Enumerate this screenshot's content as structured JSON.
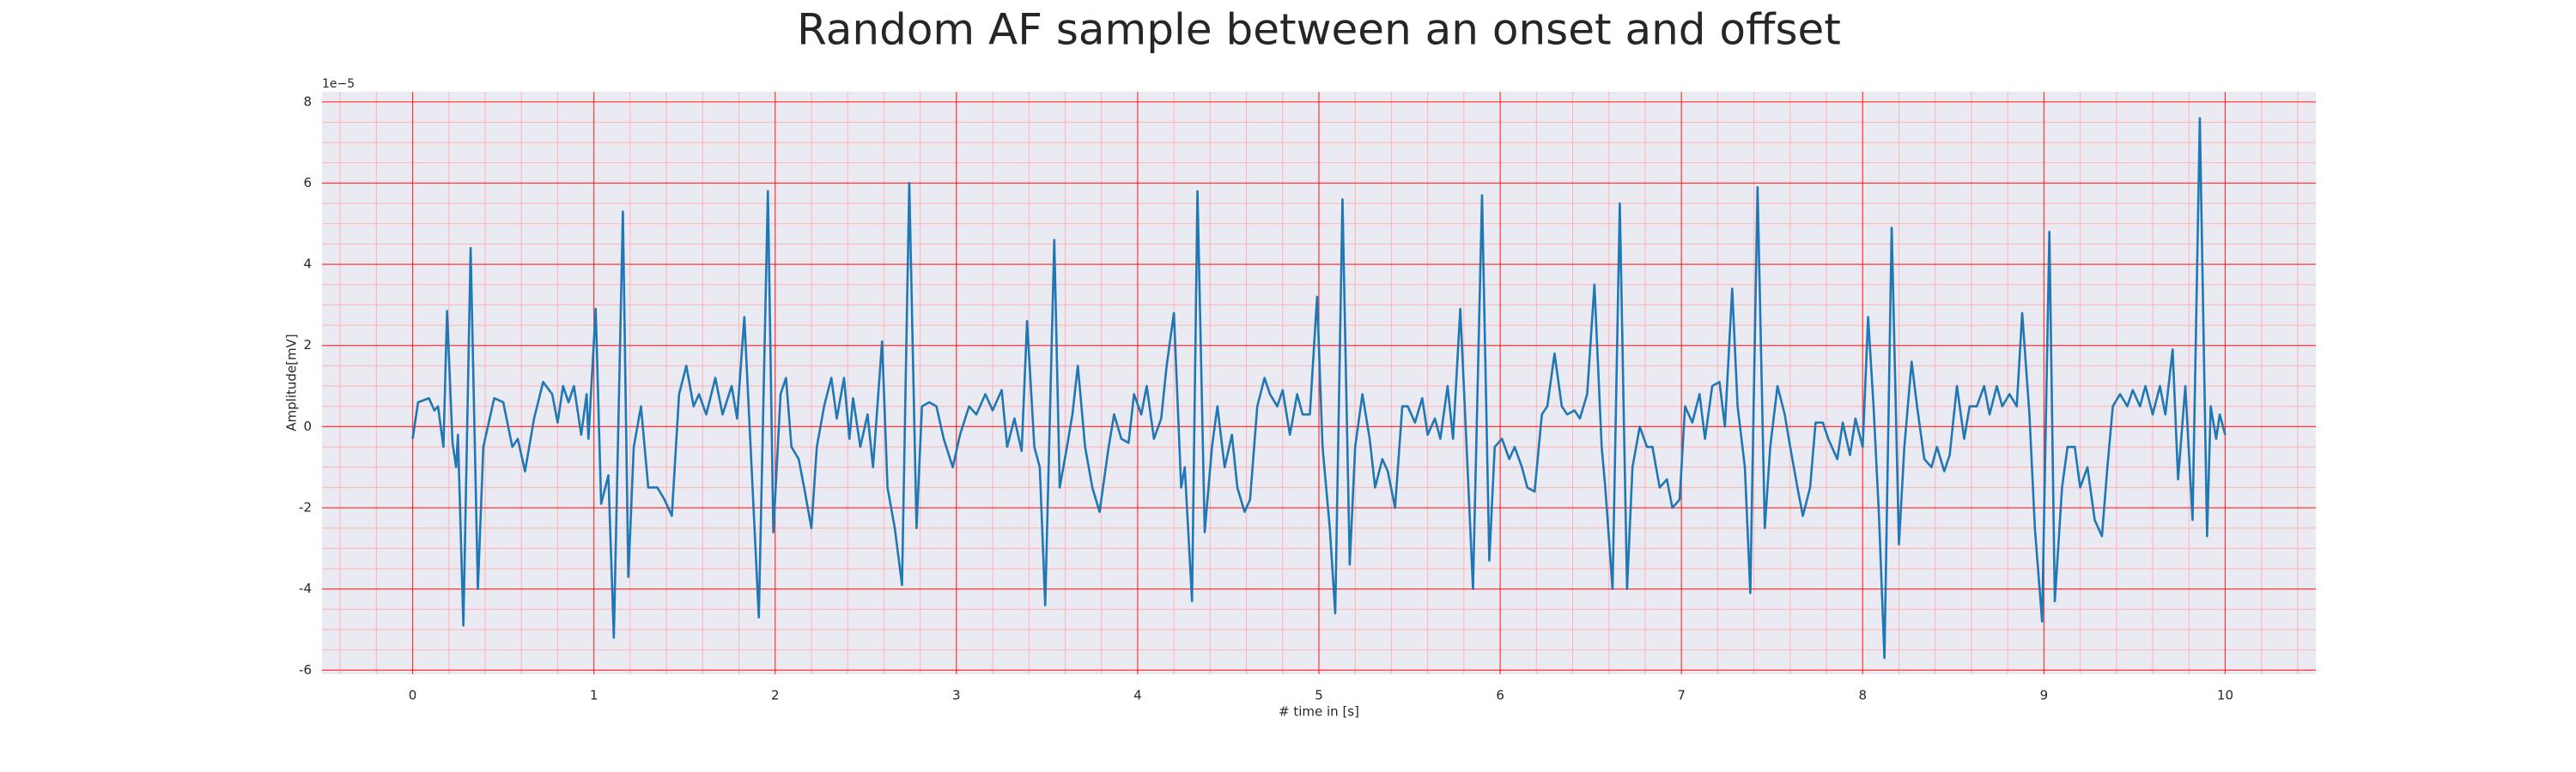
{
  "chart_data": {
    "type": "line",
    "title": "Random AF sample between an onset and offset",
    "xlabel": "# time in [s]",
    "ylabel": "Amplitude[mV]",
    "y_offset_label": "1e−5",
    "color": "#1f77b4",
    "grid": true,
    "grid_color": "#ff0000",
    "minor_grid_color": "#ffb3b3",
    "minor_xstep": 0.2,
    "minor_ystep": 0.5,
    "xlim": [
      -0.5,
      10.5
    ],
    "ylim": [
      -6.1,
      8.25
    ],
    "xticks": [
      0,
      1,
      2,
      3,
      4,
      5,
      6,
      7,
      8,
      9,
      10
    ],
    "yticks": [
      -6,
      -4,
      -2,
      0,
      2,
      4,
      6,
      8
    ],
    "x": [
      0.0,
      0.03,
      0.09,
      0.12,
      0.14,
      0.17,
      0.19,
      0.22,
      0.24,
      0.25,
      0.28,
      0.32,
      0.36,
      0.39,
      0.45,
      0.5,
      0.55,
      0.58,
      0.62,
      0.67,
      0.72,
      0.77,
      0.8,
      0.83,
      0.86,
      0.89,
      0.93,
      0.96,
      0.97,
      1.01,
      1.04,
      1.08,
      1.11,
      1.16,
      1.19,
      1.22,
      1.26,
      1.3,
      1.35,
      1.39,
      1.43,
      1.47,
      1.51,
      1.55,
      1.58,
      1.62,
      1.67,
      1.71,
      1.76,
      1.79,
      1.83,
      1.87,
      1.91,
      1.96,
      1.99,
      2.03,
      2.06,
      2.09,
      2.13,
      2.16,
      2.2,
      2.23,
      2.27,
      2.31,
      2.34,
      2.38,
      2.41,
      2.43,
      2.47,
      2.51,
      2.54,
      2.59,
      2.62,
      2.66,
      2.7,
      2.74,
      2.78,
      2.81,
      2.85,
      2.89,
      2.93,
      2.98,
      3.02,
      3.07,
      3.11,
      3.16,
      3.2,
      3.25,
      3.28,
      3.32,
      3.36,
      3.39,
      3.43,
      3.46,
      3.49,
      3.54,
      3.57,
      3.61,
      3.64,
      3.67,
      3.71,
      3.75,
      3.79,
      3.84,
      3.87,
      3.91,
      3.95,
      3.98,
      4.02,
      4.05,
      4.09,
      4.13,
      4.16,
      4.2,
      4.24,
      4.26,
      4.3,
      4.33,
      4.37,
      4.41,
      4.44,
      4.48,
      4.52,
      4.55,
      4.59,
      4.62,
      4.66,
      4.7,
      4.73,
      4.77,
      4.8,
      4.84,
      4.88,
      4.91,
      4.95,
      4.99,
      5.02,
      5.06,
      5.09,
      5.13,
      5.17,
      5.2,
      5.24,
      5.28,
      5.31,
      5.35,
      5.38,
      5.42,
      5.46,
      5.49,
      5.53,
      5.57,
      5.6,
      5.64,
      5.67,
      5.71,
      5.74,
      5.78,
      5.82,
      5.85,
      5.9,
      5.94,
      5.97,
      6.01,
      6.05,
      6.08,
      6.12,
      6.15,
      6.19,
      6.23,
      6.26,
      6.3,
      6.34,
      6.37,
      6.41,
      6.44,
      6.48,
      6.52,
      6.56,
      6.58,
      6.62,
      6.66,
      6.7,
      6.73,
      6.77,
      6.81,
      6.84,
      6.88,
      6.92,
      6.95,
      6.99,
      7.02,
      7.06,
      7.1,
      7.13,
      7.17,
      7.21,
      7.24,
      7.28,
      7.31,
      7.35,
      7.38,
      7.42,
      7.46,
      7.49,
      7.53,
      7.57,
      7.6,
      7.64,
      7.67,
      7.71,
      7.74,
      7.78,
      7.81,
      7.86,
      7.89,
      7.93,
      7.96,
      8.0,
      8.03,
      8.06,
      8.09,
      8.12,
      8.16,
      8.2,
      8.23,
      8.27,
      8.3,
      8.34,
      8.38,
      8.41,
      8.45,
      8.48,
      8.52,
      8.56,
      8.59,
      8.63,
      8.67,
      8.7,
      8.74,
      8.77,
      8.81,
      8.85,
      8.88,
      8.92,
      8.95,
      8.99,
      9.03,
      9.06,
      9.1,
      9.13,
      9.17,
      9.2,
      9.24,
      9.28,
      9.32,
      9.35,
      9.38,
      9.42,
      9.46,
      9.49,
      9.53,
      9.56,
      9.6,
      9.64,
      9.67,
      9.71,
      9.74,
      9.78,
      9.82,
      9.86,
      9.9,
      9.92,
      9.95,
      9.97,
      10.0
    ],
    "values": [
      -0.3,
      0.6,
      0.7,
      0.4,
      0.5,
      -0.5,
      2.85,
      -0.4,
      -1.0,
      -0.2,
      -4.9,
      4.4,
      -4.0,
      -0.5,
      0.7,
      0.6,
      -0.5,
      -0.3,
      -1.1,
      0.2,
      1.1,
      0.8,
      0.1,
      1.0,
      0.6,
      1.0,
      -0.2,
      0.8,
      -0.3,
      2.9,
      -1.9,
      -1.2,
      -5.2,
      5.3,
      -3.7,
      -0.5,
      0.5,
      -1.5,
      -1.5,
      -1.8,
      -2.2,
      0.8,
      1.5,
      0.5,
      0.8,
      0.3,
      1.2,
      0.3,
      1.0,
      0.2,
      2.7,
      -1.0,
      -4.7,
      5.8,
      -2.6,
      0.8,
      1.2,
      -0.5,
      -0.8,
      -1.5,
      -2.5,
      -0.5,
      0.5,
      1.2,
      0.2,
      1.2,
      -0.3,
      0.7,
      -0.5,
      0.3,
      -1.0,
      2.1,
      -1.5,
      -2.5,
      -3.9,
      6.0,
      -2.5,
      0.5,
      0.6,
      0.5,
      -0.3,
      -1.0,
      -0.2,
      0.5,
      0.3,
      0.8,
      0.4,
      0.9,
      -0.5,
      0.2,
      -0.6,
      2.6,
      -0.5,
      -1.0,
      -4.4,
      4.6,
      -1.5,
      -0.5,
      0.3,
      1.5,
      -0.5,
      -1.5,
      -2.1,
      -0.5,
      0.3,
      -0.3,
      -0.4,
      0.8,
      0.3,
      1.0,
      -0.3,
      0.2,
      1.5,
      2.8,
      -1.5,
      -1.0,
      -4.3,
      5.8,
      -2.6,
      -0.5,
      0.5,
      -1.0,
      -0.2,
      -1.5,
      -2.1,
      -1.8,
      0.5,
      1.2,
      0.8,
      0.5,
      0.9,
      -0.2,
      0.8,
      0.3,
      0.3,
      3.2,
      -0.5,
      -2.5,
      -4.6,
      5.6,
      -3.4,
      -0.5,
      0.8,
      -0.3,
      -1.5,
      -0.8,
      -1.1,
      -2.0,
      0.5,
      0.5,
      0.1,
      0.7,
      -0.2,
      0.2,
      -0.3,
      1.0,
      -0.3,
      2.9,
      -1.0,
      -4.0,
      5.7,
      -3.3,
      -0.5,
      -0.3,
      -0.8,
      -0.5,
      -1.0,
      -1.5,
      -1.6,
      0.3,
      0.5,
      1.8,
      0.5,
      0.3,
      0.4,
      0.2,
      0.8,
      3.5,
      -0.5,
      -1.5,
      -4.0,
      5.5,
      -4.0,
      -1.0,
      0.0,
      -0.5,
      -0.5,
      -1.5,
      -1.3,
      -2.0,
      -1.8,
      0.5,
      0.1,
      0.8,
      -0.3,
      1.0,
      1.1,
      0.0,
      3.4,
      0.5,
      -1.0,
      -4.1,
      5.9,
      -2.5,
      -0.5,
      1.0,
      0.3,
      -0.5,
      -1.5,
      -2.2,
      -1.5,
      0.1,
      0.1,
      -0.3,
      -0.8,
      0.1,
      -0.7,
      0.2,
      -0.5,
      2.7,
      0.5,
      -2.2,
      -5.7,
      4.9,
      -2.9,
      -0.5,
      1.6,
      0.5,
      -0.8,
      -1.0,
      -0.5,
      -1.1,
      -0.7,
      1.0,
      -0.3,
      0.5,
      0.5,
      1.0,
      0.3,
      1.0,
      0.5,
      0.8,
      0.5,
      2.8,
      0.3,
      -2.5,
      -4.8,
      4.8,
      -4.3,
      -1.5,
      -0.5,
      -0.5,
      -1.5,
      -1.0,
      -2.3,
      -2.7,
      -1.0,
      0.5,
      0.8,
      0.5,
      0.9,
      0.5,
      1.0,
      0.3,
      1.0,
      0.3,
      1.9,
      -1.3,
      1.0,
      -2.3,
      7.6,
      -2.7,
      0.5,
      -0.3,
      0.3,
      -0.2
    ]
  }
}
